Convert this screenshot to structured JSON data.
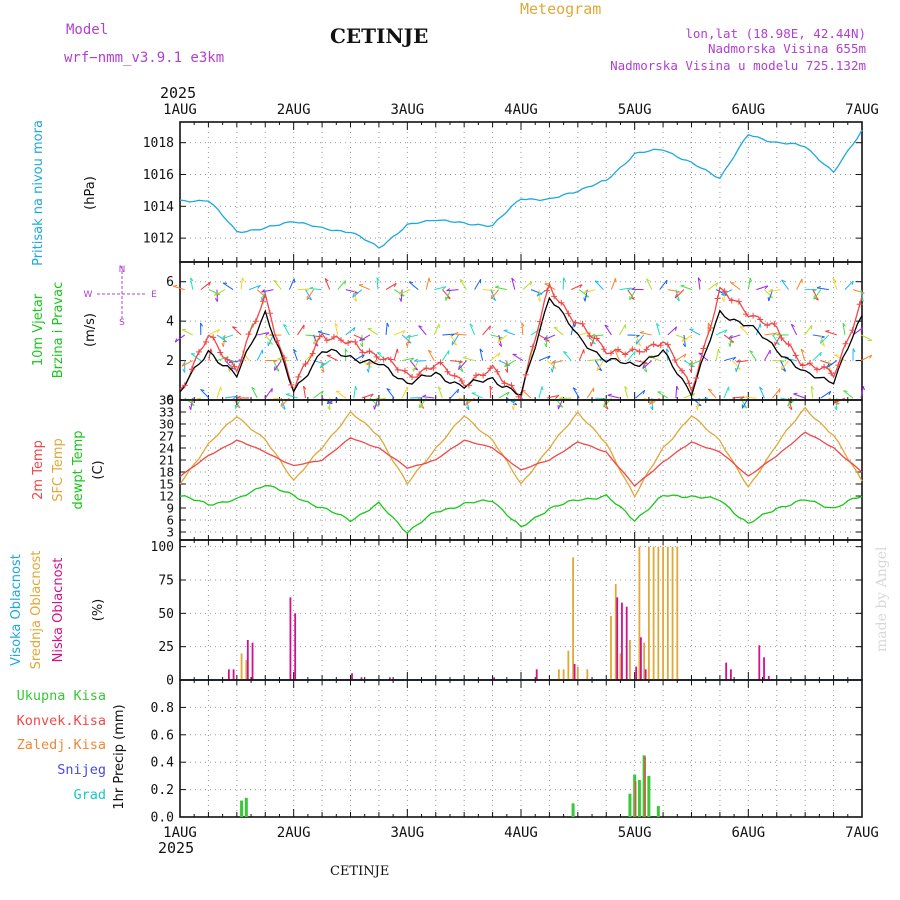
{
  "header": {
    "model_label": "Model",
    "model_name": "wrf−nmm_v3.9.1  e3km",
    "station": "CETINJE",
    "title": "Meteogram",
    "lonlat": "lon,lat (18.98E, 42.44N)",
    "altitude": "Nadmorska Visina 655m",
    "model_altitude": "Nadmorska Visina u modelu 725.132m",
    "year_top": "2025",
    "year_bottom": "2025",
    "footer_station": "CETINJE",
    "credit": "made by Angel"
  },
  "colors": {
    "pressure": "#1ea8e0",
    "wind_label": "#18c818",
    "wind_speed": "#000000",
    "gust": "#f04848",
    "temp2m": "#f04848",
    "sfc_temp": "#e0a838",
    "dewpoint": "#18c818",
    "high_cloud": "#1ea8e0",
    "mid_cloud": "#e0a838",
    "low_cloud": "#d0108c",
    "total_precip": "#38c838",
    "conv_precip": "#f04848",
    "frz_precip": "#f08838",
    "snow": "#4848e0",
    "graupel": "#18c8c8",
    "header_purple": "#b040d0",
    "header_orange": "#e0a838"
  },
  "chart_data": [
    {
      "type": "line",
      "title": "Pritisak na nivou mora",
      "ylabel": "(hPa)",
      "ylim": [
        1010.5,
        1019.3
      ],
      "yticks": [
        1012,
        1014,
        1016,
        1018
      ],
      "x_ticks": [
        "1AUG",
        "2AUG",
        "3AUG",
        "4AUG",
        "5AUG",
        "6AUG",
        "7AUG"
      ],
      "x_hours": [
        0,
        6,
        12,
        18,
        24,
        30,
        36,
        42,
        48,
        54,
        60,
        66,
        72,
        78,
        84,
        90,
        96,
        102,
        108,
        114,
        120,
        126,
        132,
        138,
        144
      ],
      "series": [
        {
          "name": "Pressure",
          "values": [
            1014.3,
            1014.4,
            1012.4,
            1012.6,
            1013.1,
            1012.6,
            1012.4,
            1011.4,
            1012.8,
            1013.2,
            1012.9,
            1012.8,
            1014.5,
            1014.4,
            1015.0,
            1015.6,
            1017.3,
            1017.6,
            1016.7,
            1015.8,
            1018.5,
            1018.0,
            1017.8,
            1016.1,
            1018.8
          ]
        }
      ]
    },
    {
      "type": "line",
      "title": "10m Vjetar Brzina i Pravac",
      "ylabel": "(m/s)",
      "ylim": [
        0,
        7
      ],
      "yticks": [
        0,
        2,
        4,
        6
      ],
      "compass": {
        "n": "N",
        "w": "W",
        "e": "E",
        "s": "S"
      },
      "x_hours": [
        0,
        6,
        12,
        18,
        24,
        30,
        36,
        42,
        48,
        54,
        60,
        66,
        72,
        78,
        84,
        90,
        96,
        102,
        108,
        114,
        120,
        126,
        132,
        138,
        144
      ],
      "series": [
        {
          "name": "Wind speed",
          "values": [
            0.4,
            2.5,
            1.2,
            4.5,
            0.4,
            2.5,
            2.2,
            1.8,
            0.9,
            1.3,
            0.7,
            1.1,
            0.2,
            5.3,
            3.2,
            2.0,
            1.8,
            2.4,
            0.4,
            4.4,
            3.8,
            2.6,
            1.3,
            1.0,
            4.2
          ]
        },
        {
          "name": "Gust",
          "values": [
            0.5,
            3.2,
            1.6,
            5.2,
            0.5,
            3.4,
            2.8,
            2.3,
            1.2,
            1.8,
            0.9,
            1.5,
            0.3,
            5.8,
            3.8,
            2.6,
            2.3,
            3.1,
            0.5,
            5.5,
            4.5,
            3.5,
            1.8,
            1.3,
            5.0
          ]
        }
      ],
      "barb_levels": [
        0.1,
        2.0,
        3.3,
        5.6
      ]
    },
    {
      "type": "line",
      "title": "2m Temp / SFC Temp / dewpt Temp",
      "ylabel": "(C)",
      "ylim": [
        1,
        36
      ],
      "yticks": [
        3,
        6,
        9,
        12,
        15,
        18,
        21,
        24,
        27,
        30,
        33,
        36
      ],
      "x_hours": [
        0,
        6,
        12,
        18,
        24,
        30,
        36,
        42,
        48,
        54,
        60,
        66,
        72,
        78,
        84,
        90,
        96,
        102,
        108,
        114,
        120,
        126,
        132,
        138,
        144
      ],
      "series": [
        {
          "name": "2m Temp",
          "values": [
            17,
            22,
            26,
            23,
            19.5,
            21,
            26.5,
            24,
            19,
            21,
            26,
            24,
            18.5,
            21,
            25.5,
            23,
            14.5,
            20.5,
            25.5,
            23,
            17,
            22,
            28,
            24,
            18
          ]
        },
        {
          "name": "SFC Temp",
          "values": [
            15,
            25,
            32,
            26,
            16,
            24,
            33,
            27,
            15,
            24,
            32,
            26,
            15,
            24,
            33,
            25,
            12,
            24,
            32,
            26,
            14,
            25,
            34,
            27,
            16
          ]
        },
        {
          "name": "Dewpoint",
          "values": [
            12,
            10,
            11,
            15,
            12,
            9,
            6,
            10,
            3,
            8,
            10,
            11,
            4,
            9,
            11,
            12,
            6,
            12,
            12,
            11,
            5,
            9,
            11,
            9,
            12
          ]
        }
      ]
    },
    {
      "type": "bar",
      "title": "Visoka / Srednja / Niska Oblacnost",
      "ylabel": "(%)",
      "ylim": [
        0,
        105
      ],
      "yticks": [
        0,
        25,
        50,
        75,
        100
      ],
      "series": [
        {
          "name": "Srednja Oblacnost",
          "x_hours": [
            13,
            14,
            80,
            81,
            82,
            83,
            84,
            86,
            91,
            92,
            93,
            95,
            97,
            98,
            99,
            100,
            101,
            102,
            103,
            104,
            105
          ],
          "values": [
            20,
            15,
            8,
            8,
            22,
            92,
            10,
            8,
            48,
            72,
            20,
            30,
            100,
            28,
            100,
            100,
            100,
            100,
            100,
            100,
            100
          ]
        },
        {
          "name": "Niska Oblacnost",
          "x_hours": [
            10,
            11,
            14,
            15,
            23,
            24,
            36,
            38,
            44,
            66,
            75,
            83,
            92,
            93,
            94,
            96,
            97,
            98,
            115,
            116,
            122,
            123,
            124
          ],
          "values": [
            8,
            8,
            30,
            28,
            62,
            50,
            5,
            2,
            2,
            2,
            8,
            12,
            62,
            58,
            55,
            10,
            32,
            8,
            13,
            8,
            26,
            17,
            3
          ]
        }
      ]
    },
    {
      "type": "bar",
      "title": "1hr Precip",
      "ylabel": "1hr Precip (mm)",
      "ylim": [
        0,
        1.0
      ],
      "yticks": [
        0.0,
        0.2,
        0.4,
        0.6,
        0.8
      ],
      "legend": [
        "Ukupna  Kisa",
        "Konvek.Kisa",
        "Zaledj.Kisa",
        "Snijeg",
        "Grad"
      ],
      "series": [
        {
          "name": "Ukupna Kisa",
          "x_hours": [
            13,
            14,
            83,
            95,
            96,
            97,
            98,
            99,
            101
          ],
          "values": [
            0.12,
            0.14,
            0.1,
            0.17,
            0.31,
            0.27,
            0.45,
            0.3,
            0.08
          ]
        },
        {
          "name": "Konvek.Kisa",
          "x_hours": [
            96,
            98
          ],
          "values": [
            0.26,
            0.44
          ]
        }
      ]
    }
  ]
}
